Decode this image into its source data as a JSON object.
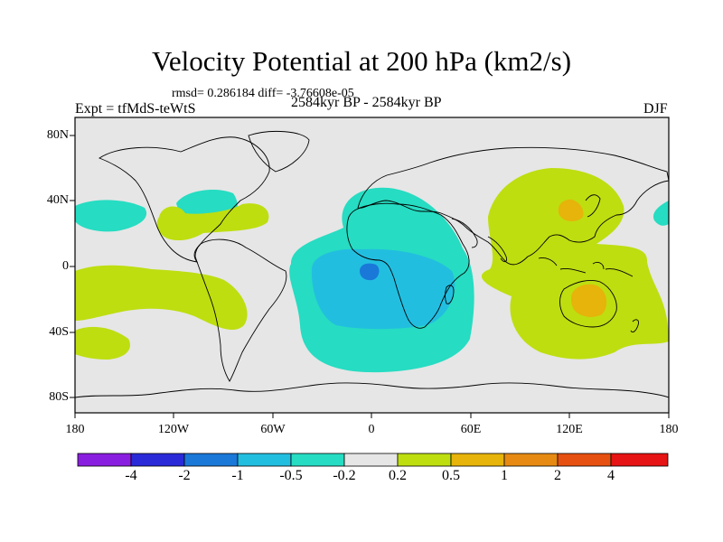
{
  "title": "Velocity Potential at 200 hPa (km2/s)",
  "stats": "rmsd= 0.286184 diff= -3.76608e-05",
  "left_label": "Expt = tfMdS-teWtS",
  "center_label": "2584kyr BP - 2584kyr BP",
  "right_label": "DJF",
  "lat_labels": [
    "80N",
    "40N",
    "0",
    "40S",
    "80S"
  ],
  "lon_labels": [
    "180",
    "120W",
    "60W",
    "0",
    "60E",
    "120E",
    "180"
  ],
  "colorbar": {
    "labels": [
      "-4",
      "-2",
      "-1",
      "-0.5",
      "-0.2",
      "0.2",
      "0.5",
      "1",
      "2",
      "4"
    ],
    "colors": [
      "#8a1ee0",
      "#2a2ad8",
      "#1a78d8",
      "#22bee0",
      "#26dcc2",
      "#e6e6e6",
      "#bede10",
      "#e6b40a",
      "#e68a14",
      "#e65010",
      "#e61414"
    ]
  },
  "colors": {
    "background": "#e6e6e6",
    "coast": "#000000",
    "lvl_m1": "#1a78d8",
    "lvl_m05": "#22bee0",
    "lvl_m02": "#26dcc2",
    "lvl_p02": "#bede10",
    "lvl_p05": "#e6b40a"
  }
}
